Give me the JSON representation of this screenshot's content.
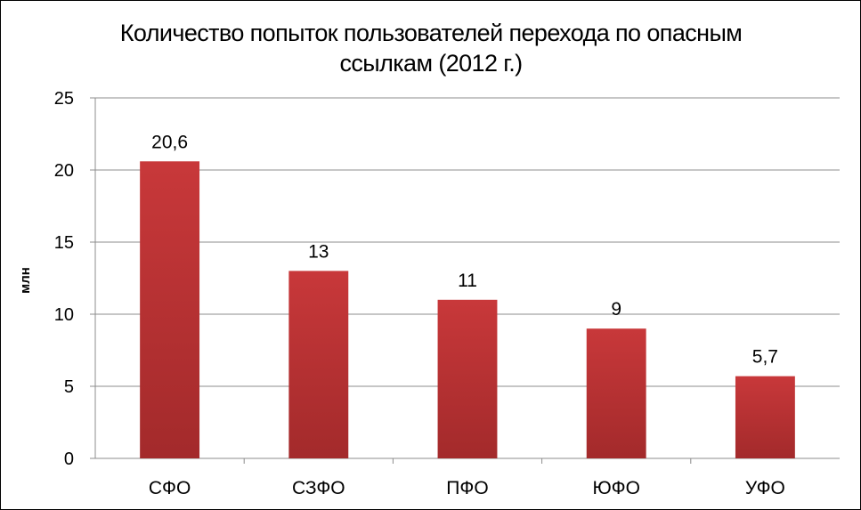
{
  "title_lines": [
    "Количество попыток пользователей перехода по опасным",
    "ссылкам (2012 г.)"
  ],
  "chart_data": {
    "type": "bar",
    "title": "Количество попыток пользователей перехода по опасным ссылкам (2012 г.)",
    "xlabel": "",
    "ylabel": "млн",
    "categories": [
      "СФО",
      "СЗФО",
      "ПФО",
      "ЮФО",
      "УФО"
    ],
    "values": [
      20.6,
      13,
      11,
      9,
      5.7
    ],
    "value_labels": [
      "20,6",
      "13",
      "11",
      "9",
      "5,7"
    ],
    "ylim": [
      0,
      25
    ],
    "yticks": [
      0,
      5,
      10,
      15,
      20,
      25
    ],
    "grid": true,
    "legend": "none",
    "bar_color": "#c8383a",
    "bar_color_dark": "#a32a2b"
  }
}
